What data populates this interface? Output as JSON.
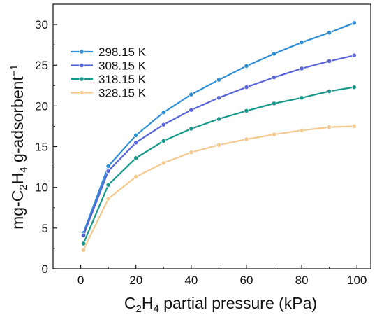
{
  "chart_data": {
    "type": "line",
    "title": "",
    "xlabel": "C2H4 partial pressure (kPa)",
    "ylabel": "mg-C2H4 g-adsorbent−1",
    "xlabel_parts": {
      "c": "C",
      "sub1": "2",
      "h": "H",
      "sub2": "4",
      "rest": " partial pressure (kPa)"
    },
    "ylabel_parts": {
      "pre": "mg-C",
      "sub1": "2",
      "h": "H",
      "sub2": "4",
      "mid": " g-adsorbent",
      "sup": "−1"
    },
    "xlim": [
      -10,
      105
    ],
    "ylim": [
      0,
      32.5
    ],
    "xticks": [
      0,
      20,
      40,
      60,
      80,
      100
    ],
    "yticks": [
      0,
      5,
      10,
      15,
      20,
      25,
      30
    ],
    "legend_position": "top-left",
    "grid": false,
    "series": [
      {
        "name": "298.15 K",
        "color": "#2e8fd6",
        "x": [
          1,
          10,
          20,
          30,
          40,
          50,
          60,
          70,
          80,
          90,
          99
        ],
        "y": [
          4.4,
          12.6,
          16.4,
          19.2,
          21.4,
          23.2,
          24.9,
          26.4,
          27.8,
          29.0,
          30.2
        ]
      },
      {
        "name": "308.15 K",
        "color": "#5864d9",
        "x": [
          1,
          10,
          20,
          30,
          40,
          50,
          60,
          70,
          80,
          90,
          99
        ],
        "y": [
          4.1,
          12.0,
          15.5,
          17.7,
          19.5,
          21.0,
          22.3,
          23.5,
          24.6,
          25.5,
          26.2
        ]
      },
      {
        "name": "318.15 K",
        "color": "#14988a",
        "x": [
          1,
          10,
          20,
          30,
          40,
          50,
          60,
          70,
          80,
          90,
          99
        ],
        "y": [
          3.1,
          10.3,
          13.6,
          15.7,
          17.2,
          18.4,
          19.4,
          20.3,
          21.0,
          21.8,
          22.3
        ]
      },
      {
        "name": "328.15 K",
        "color": "#f5c98e",
        "x": [
          1,
          10,
          20,
          30,
          40,
          50,
          60,
          70,
          80,
          90,
          99
        ],
        "y": [
          2.3,
          8.6,
          11.3,
          13.0,
          14.3,
          15.2,
          15.9,
          16.5,
          17.0,
          17.4,
          17.5
        ]
      }
    ]
  }
}
